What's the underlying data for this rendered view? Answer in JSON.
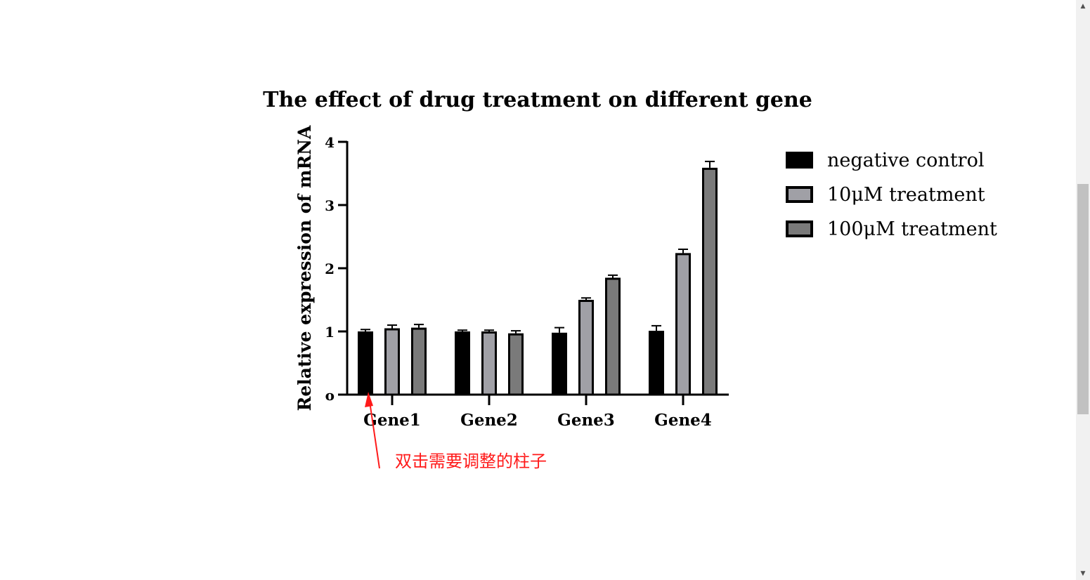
{
  "chart_data": {
    "type": "bar",
    "title": "The effect of drug treatment on different gene",
    "xlabel": "",
    "ylabel": "Relative expression of mRNA",
    "ylim": [
      0,
      4
    ],
    "yticks": [
      0,
      1,
      2,
      3,
      4
    ],
    "ytick_labels": [
      "o",
      "1",
      "2",
      "3",
      "4"
    ],
    "categories": [
      "Gene1",
      "Gene2",
      "Gene3",
      "Gene4"
    ],
    "series": [
      {
        "name": "negative control",
        "values": [
          1.0,
          1.0,
          0.98,
          1.01
        ],
        "errors": [
          0.03,
          0.02,
          0.08,
          0.08
        ],
        "color": "#000000"
      },
      {
        "name": "10μM treatment",
        "values": [
          1.05,
          1.0,
          1.5,
          2.24
        ],
        "errors": [
          0.05,
          0.02,
          0.03,
          0.06
        ],
        "color": "#a0a0a6"
      },
      {
        "name": "100μM treatment",
        "values": [
          1.06,
          0.97,
          1.85,
          3.59
        ],
        "errors": [
          0.05,
          0.04,
          0.04,
          0.1
        ],
        "color": "#7a7a7a"
      }
    ],
    "legend_position": "right",
    "grid": false
  },
  "annotation": {
    "text": "双击需要调整的柱子",
    "color": "#ff1a1a"
  },
  "scrollbar": {
    "up_arrow": "▲",
    "down_arrow": "▼"
  }
}
